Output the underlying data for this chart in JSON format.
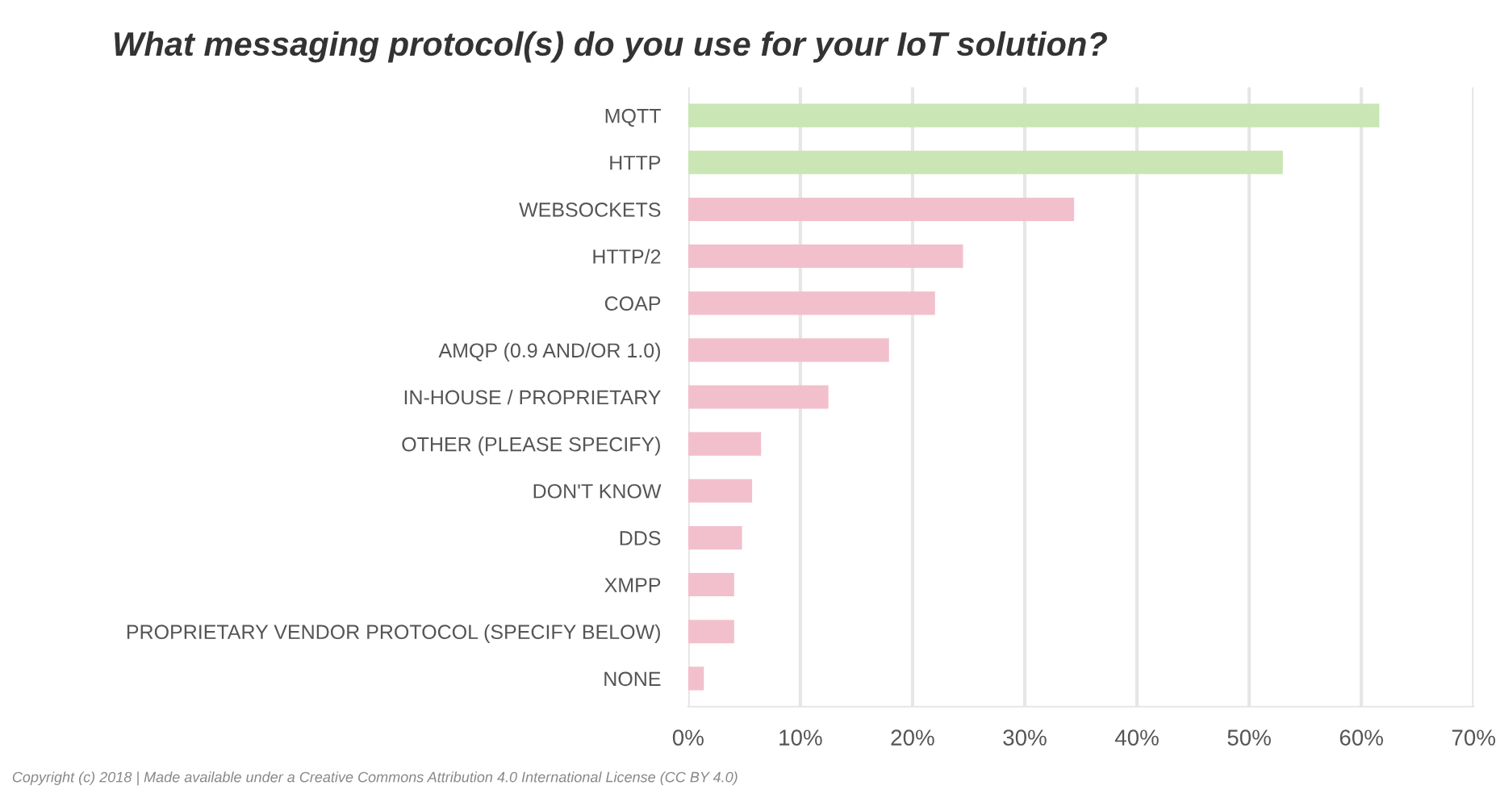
{
  "chart_data": {
    "type": "bar",
    "orientation": "horizontal",
    "title": "What messaging protocol(s) do you use for your IoT solution?",
    "categories": [
      "MQTT",
      "HTTP",
      "WEBSOCKETS",
      "HTTP/2",
      "COAP",
      "AMQP (0.9 AND/OR 1.0)",
      "IN-HOUSE / PROPRIETARY",
      "OTHER (PLEASE SPECIFY)",
      "DON'T KNOW",
      "DDS",
      "XMPP",
      "PROPRIETARY VENDOR PROTOCOL (SPECIFY BELOW)",
      "NONE"
    ],
    "values": [
      61.6,
      53.0,
      34.4,
      24.5,
      22.0,
      17.9,
      12.5,
      6.5,
      5.7,
      4.8,
      4.1,
      4.1,
      1.4
    ],
    "colors": [
      "#c9e6b4",
      "#c9e6b4",
      "#f2c0cc",
      "#f2c0cc",
      "#f2c0cc",
      "#f2c0cc",
      "#f2c0cc",
      "#f2c0cc",
      "#f2c0cc",
      "#f2c0cc",
      "#f2c0cc",
      "#f2c0cc",
      "#f2c0cc"
    ],
    "xlim": [
      0,
      70
    ],
    "xticks": [
      {
        "value": 0,
        "label": "0%"
      },
      {
        "value": 10,
        "label": "10%"
      },
      {
        "value": 20,
        "label": "20%"
      },
      {
        "value": 30,
        "label": "30%"
      },
      {
        "value": 40,
        "label": "40%"
      },
      {
        "value": 50,
        "label": "50%"
      },
      {
        "value": 60,
        "label": "60%"
      },
      {
        "value": 70,
        "label": "70%"
      }
    ],
    "grid": "x",
    "annotations": [
      "Copyright (c) 2018 | Made available under a Creative Commons Attribution 4.0 International License (CC BY 4.0)"
    ]
  }
}
